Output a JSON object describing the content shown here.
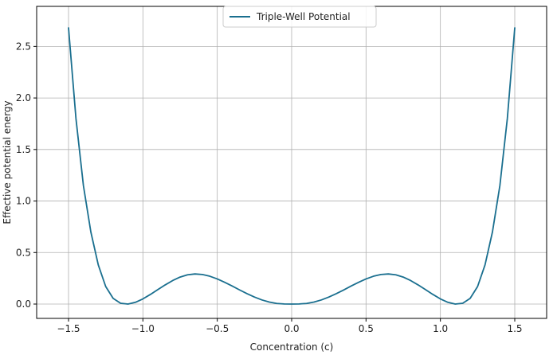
{
  "chart_data": {
    "type": "line",
    "title": "",
    "xlabel": "Concentration (c)",
    "ylabel": "Effective potential energy",
    "xlim": [
      -1.5,
      1.5
    ],
    "ylim": [
      0.0,
      2.75
    ],
    "xticks": [
      -1.5,
      -1.0,
      -0.5,
      0.0,
      0.5,
      1.0,
      1.5
    ],
    "xtick_labels": [
      "−1.5",
      "−1.0",
      "−0.5",
      "0.0",
      "0.5",
      "1.0",
      "1.5"
    ],
    "yticks": [
      0.0,
      0.5,
      1.0,
      1.5,
      2.0,
      2.5
    ],
    "ytick_labels": [
      "0.0",
      "0.5",
      "1.0",
      "1.5",
      "2.0",
      "2.5"
    ],
    "grid": true,
    "legend_position": "upper-center",
    "series": [
      {
        "name": "Triple-Well Potential",
        "color": "#1a6f8f",
        "x": [
          -1.5,
          -1.45,
          -1.4,
          -1.35,
          -1.3,
          -1.25,
          -1.2,
          -1.15,
          -1.1,
          -1.05,
          -1.0,
          -0.95,
          -0.9,
          -0.85,
          -0.8,
          -0.75,
          -0.7,
          -0.65,
          -0.6,
          -0.55,
          -0.5,
          -0.45,
          -0.4,
          -0.35,
          -0.3,
          -0.25,
          -0.2,
          -0.15,
          -0.1,
          -0.05,
          0.0,
          0.05,
          0.1,
          0.15,
          0.2,
          0.25,
          0.3,
          0.35,
          0.4,
          0.45,
          0.5,
          0.55,
          0.6,
          0.65,
          0.7,
          0.75,
          0.8,
          0.85,
          0.9,
          0.95,
          1.0,
          1.05,
          1.1,
          1.15,
          1.2,
          1.25,
          1.3,
          1.35,
          1.4,
          1.45,
          1.5
        ],
        "y": [
          2.68,
          1.8,
          1.15,
          0.7,
          0.38,
          0.17,
          0.055,
          0.008,
          0.0,
          0.017,
          0.05,
          0.093,
          0.14,
          0.186,
          0.228,
          0.262,
          0.284,
          0.292,
          0.287,
          0.27,
          0.244,
          0.211,
          0.175,
          0.137,
          0.101,
          0.068,
          0.04,
          0.019,
          0.006,
          0.001,
          0.0,
          0.001,
          0.006,
          0.019,
          0.04,
          0.068,
          0.101,
          0.137,
          0.175,
          0.211,
          0.244,
          0.27,
          0.287,
          0.292,
          0.284,
          0.262,
          0.228,
          0.186,
          0.14,
          0.093,
          0.05,
          0.017,
          0.0,
          0.008,
          0.055,
          0.17,
          0.38,
          0.7,
          1.15,
          1.8,
          2.68
        ]
      }
    ]
  }
}
